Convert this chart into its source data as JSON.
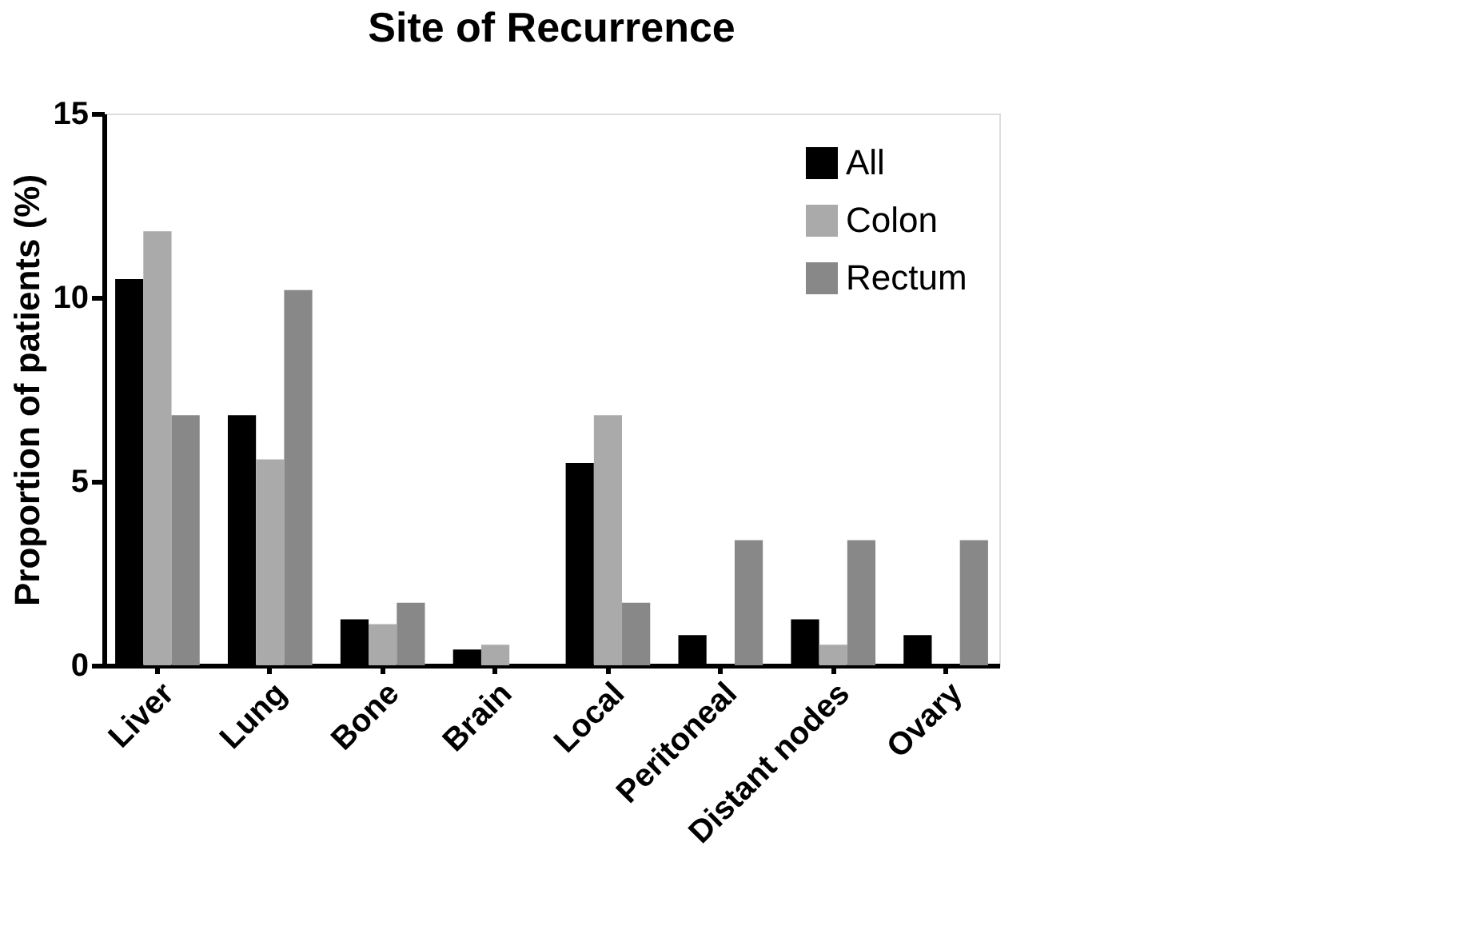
{
  "chart_data": {
    "type": "bar",
    "title": "Site of Recurrence",
    "ylabel": "Proportion of patients (%)",
    "categories": [
      "Liver",
      "Lung",
      "Bone",
      "Brain",
      "Local",
      "Peritoneal",
      "Distant nodes",
      "Ovary"
    ],
    "series": [
      {
        "name": "All",
        "color": "#000000",
        "values": [
          10.5,
          6.8,
          1.25,
          0.43,
          5.5,
          0.82,
          1.25,
          0.82
        ]
      },
      {
        "name": "Colon",
        "color": "#aaaaaa",
        "values": [
          11.8,
          5.6,
          1.12,
          0.56,
          6.8,
          0,
          0.56,
          0
        ]
      },
      {
        "name": "Rectum",
        "color": "#888888",
        "values": [
          6.8,
          10.2,
          1.7,
          0,
          1.7,
          3.4,
          3.4,
          3.4
        ]
      }
    ],
    "ylim": [
      0,
      15
    ],
    "yticks": [
      0,
      5,
      10,
      15
    ],
    "grid": false,
    "legend": "top right"
  }
}
